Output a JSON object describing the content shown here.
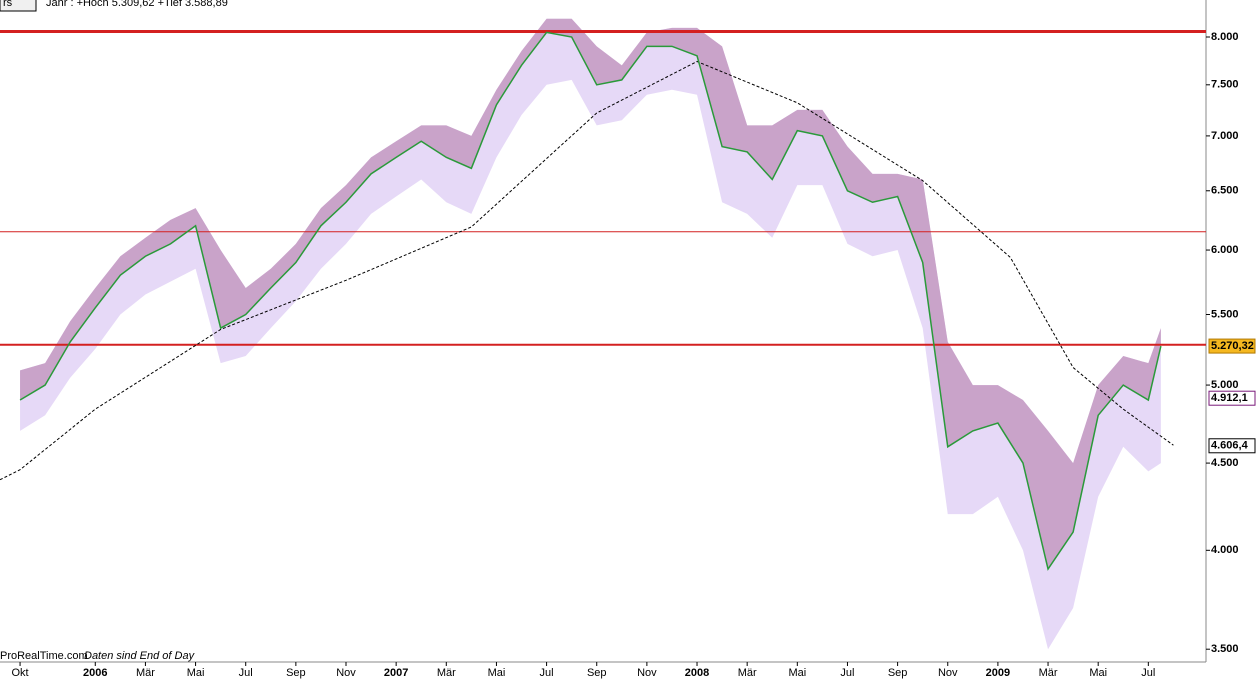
{
  "chart_data": {
    "type": "line",
    "header": "Jahr : +Hoch 5.309,62 +Tief 3.588,89",
    "corner_label": "rs",
    "footer": "ProRealTime.com",
    "footer_note": "Daten sind End of Day",
    "log_scale": true,
    "xlim": [
      -0.8,
      47.3
    ],
    "ylim": [
      3440,
      8410
    ],
    "xticks": [
      {
        "value": 0,
        "label": "Okt"
      },
      {
        "value": 3,
        "label": "2006"
      },
      {
        "value": 5,
        "label": "Mär"
      },
      {
        "value": 7,
        "label": "Mai"
      },
      {
        "value": 9,
        "label": "Jul"
      },
      {
        "value": 11,
        "label": "Sep"
      },
      {
        "value": 13,
        "label": "Nov"
      },
      {
        "value": 15,
        "label": "2007"
      },
      {
        "value": 17,
        "label": "Mär"
      },
      {
        "value": 19,
        "label": "Mai"
      },
      {
        "value": 21,
        "label": "Jul"
      },
      {
        "value": 23,
        "label": "Sep"
      },
      {
        "value": 25,
        "label": "Nov"
      },
      {
        "value": 27,
        "label": "2008"
      },
      {
        "value": 29,
        "label": "Mär"
      },
      {
        "value": 31,
        "label": "Mai"
      },
      {
        "value": 33,
        "label": "Jul"
      },
      {
        "value": 35,
        "label": "Sep"
      },
      {
        "value": 37,
        "label": "Nov"
      },
      {
        "value": 39,
        "label": "2009"
      },
      {
        "value": 41,
        "label": "Mär"
      },
      {
        "value": 43,
        "label": "Mai"
      },
      {
        "value": 45,
        "label": "Jul"
      }
    ],
    "yticks": [
      {
        "value": 8000,
        "label": "8.000"
      },
      {
        "value": 7500,
        "label": "7.500"
      },
      {
        "value": 7000,
        "label": "7.000"
      },
      {
        "value": 6500,
        "label": "6.500"
      },
      {
        "value": 6000,
        "label": "6.000"
      },
      {
        "value": 5500,
        "label": "5.500"
      },
      {
        "value": 5000,
        "label": "5.000"
      },
      {
        "value": 4500,
        "label": "4.500"
      },
      {
        "value": 4000,
        "label": "4.000"
      },
      {
        "value": 3500,
        "label": "3.500"
      }
    ],
    "x": [
      0,
      1,
      2,
      3,
      4,
      5,
      6,
      7,
      8,
      9,
      10,
      11,
      12,
      13,
      14,
      15,
      16,
      17,
      18,
      19,
      20,
      21,
      22,
      23,
      24,
      25,
      26,
      27,
      28,
      29,
      30,
      31,
      32,
      33,
      34,
      35,
      36,
      37,
      38,
      39,
      40,
      41,
      42,
      43,
      44,
      45,
      45.5
    ],
    "series": [
      {
        "color": "#2a9a3a",
        "values": [
          4900,
          5000,
          5300,
          5550,
          5800,
          5950,
          6050,
          6200,
          5400,
          5500,
          5700,
          5900,
          6200,
          6400,
          6650,
          6800,
          6950,
          6800,
          6700,
          7300,
          7700,
          8050,
          8000,
          7500,
          7550,
          7900,
          7900,
          7800,
          6900,
          6850,
          6600,
          7050,
          7000,
          6500,
          6400,
          6450,
          5900,
          4600,
          4700,
          4750,
          4500,
          3900,
          4100,
          4800,
          5000,
          4900,
          5270
        ]
      }
    ],
    "band_upper": {
      "color": "#c9a3c9",
      "values": [
        5100,
        5150,
        5450,
        5700,
        5950,
        6100,
        6250,
        6350,
        6000,
        5700,
        5850,
        6050,
        6350,
        6550,
        6800,
        6950,
        7100,
        7100,
        7000,
        7450,
        7850,
        8200,
        8200,
        7900,
        7700,
        8050,
        8100,
        8100,
        7900,
        7100,
        7100,
        7250,
        7250,
        6900,
        6650,
        6650,
        6600,
        5300,
        5000,
        5000,
        4900,
        4700,
        4500,
        5000,
        5200,
        5150,
        5400
      ]
    },
    "band_lower": {
      "color": "#e6d9f7",
      "values": [
        4700,
        4800,
        5050,
        5250,
        5500,
        5650,
        5750,
        5850,
        5150,
        5200,
        5400,
        5600,
        5850,
        6050,
        6300,
        6450,
        6600,
        6400,
        6300,
        6800,
        7200,
        7500,
        7550,
        7100,
        7150,
        7400,
        7450,
        7400,
        6400,
        6300,
        6100,
        6550,
        6550,
        6050,
        5950,
        6000,
        5400,
        4200,
        4200,
        4300,
        4000,
        3500,
        3700,
        4300,
        4600,
        4450,
        4500
      ]
    },
    "moving_average": {
      "color": "#000000",
      "x": [
        -0.8,
        0,
        3,
        8,
        13,
        18,
        23,
        27,
        31,
        36,
        39.5,
        42,
        44,
        46
      ],
      "values": [
        4400,
        4460,
        4840,
        5390,
        5760,
        6190,
        7220,
        7740,
        7320,
        6590,
        5940,
        5120,
        4840,
        4610
      ]
    },
    "hlines": [
      {
        "value": 8060,
        "color": "#d42020",
        "width": 3
      },
      {
        "value": 6150,
        "color": "#d42020",
        "width": 1
      },
      {
        "value": 5280,
        "color": "#d42020",
        "width": 2
      }
    ],
    "annotations": [
      {
        "value": 5270.32,
        "label": "5.270,32",
        "color": "#f5b820"
      },
      {
        "value": 4912.1,
        "label": "4.912,1",
        "color": "#7a1a7a"
      },
      {
        "value": 4606.4,
        "label": "4.606,4",
        "color": "#000000"
      }
    ]
  }
}
